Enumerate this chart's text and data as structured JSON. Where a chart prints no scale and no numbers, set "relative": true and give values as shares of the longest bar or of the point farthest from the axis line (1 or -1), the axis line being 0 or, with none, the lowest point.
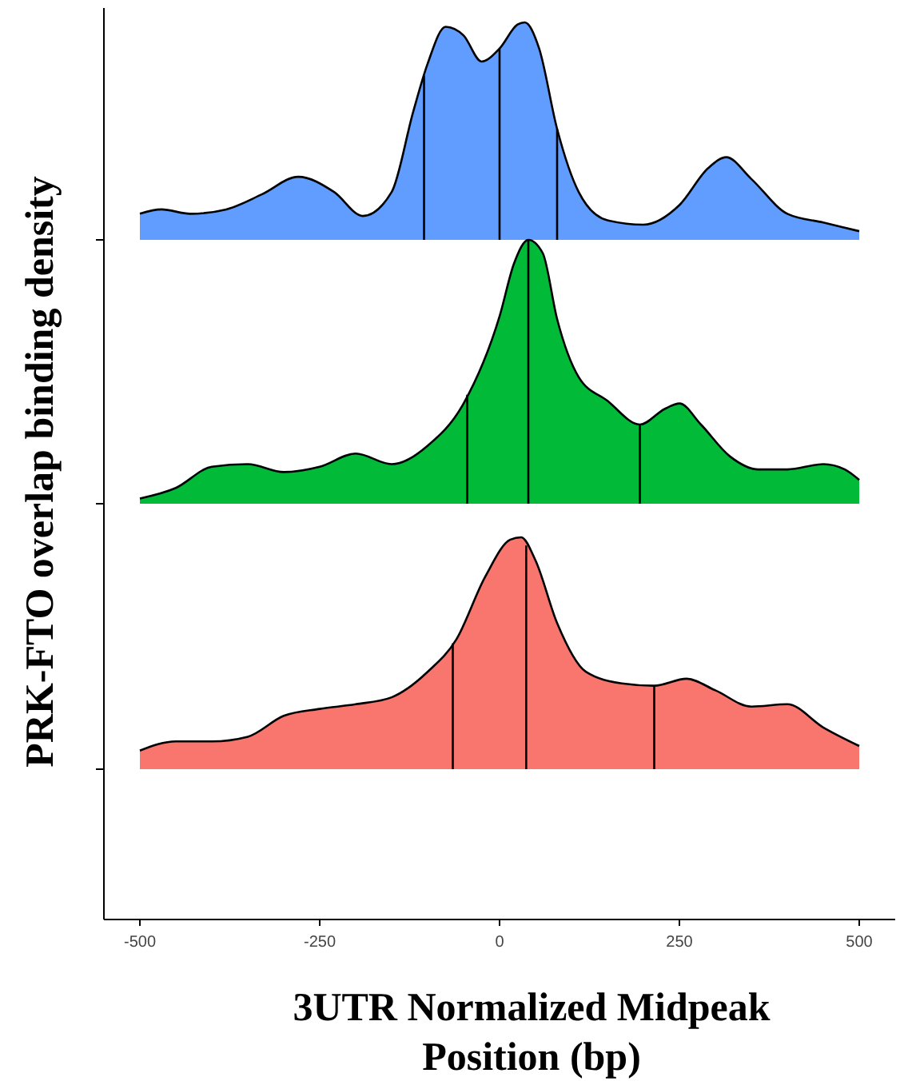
{
  "chart_data": [
    {
      "type": "area",
      "relative": true,
      "xlim": [
        -500,
        500
      ],
      "xticks": [
        -500,
        -250,
        0,
        250,
        500
      ],
      "tick_labels": false,
      "ylabel": "PRK-FTO overlap binding density",
      "series": [
        {
          "color": "#619cff",
          "x": [
            -500,
            -470,
            -430,
            -380,
            -330,
            -280,
            -230,
            -190,
            -150,
            -120,
            -100,
            -75,
            -50,
            -25,
            0,
            25,
            35,
            55,
            80,
            110,
            150,
            200,
            250,
            290,
            315,
            350,
            400,
            450,
            500
          ],
          "values": [
            0.12,
            0.14,
            0.12,
            0.14,
            0.21,
            0.29,
            0.22,
            0.11,
            0.22,
            0.59,
            0.81,
            0.98,
            0.94,
            0.82,
            0.88,
            0.99,
            1,
            0.88,
            0.51,
            0.22,
            0.09,
            0.07,
            0.16,
            0.33,
            0.38,
            0.28,
            0.12,
            0.08,
            0.04
          ]
        }
      ],
      "ref_lines": [
        {
          "axis": "x",
          "value": -105,
          "color": "#000000"
        },
        {
          "axis": "x",
          "value": 0,
          "color": "#000000"
        },
        {
          "axis": "x",
          "value": 80,
          "color": "#000000"
        }
      ]
    },
    {
      "type": "area",
      "relative": true,
      "xlim": [
        -500,
        500
      ],
      "xticks": [
        -500,
        -250,
        0,
        250,
        500
      ],
      "tick_labels": false,
      "series": [
        {
          "color": "#00ba38",
          "x": [
            -500,
            -450,
            -400,
            -350,
            -300,
            -250,
            -200,
            -150,
            -100,
            -50,
            0,
            20,
            40,
            60,
            80,
            110,
            150,
            195,
            230,
            250,
            280,
            320,
            360,
            400,
            450,
            480,
            500
          ],
          "values": [
            0.02,
            0.06,
            0.14,
            0.15,
            0.12,
            0.14,
            0.19,
            0.15,
            0.22,
            0.38,
            0.71,
            0.91,
            1,
            0.95,
            0.7,
            0.48,
            0.39,
            0.3,
            0.36,
            0.38,
            0.3,
            0.18,
            0.13,
            0.13,
            0.15,
            0.13,
            0.09
          ]
        }
      ],
      "ref_lines": [
        {
          "axis": "x",
          "value": -45,
          "color": "#000000"
        },
        {
          "axis": "x",
          "value": 40,
          "color": "#000000"
        },
        {
          "axis": "x",
          "value": 195,
          "color": "#000000"
        }
      ]
    },
    {
      "type": "area",
      "relative": true,
      "xlim": [
        -550,
        550
      ],
      "xticks": [
        -500,
        -250,
        0,
        250,
        500
      ],
      "tick_labels": "x",
      "xlabel": "3UTR Normalized Midpeak Position (bp)",
      "series": [
        {
          "color": "#f8766d",
          "x": [
            -500,
            -450,
            -400,
            -350,
            -300,
            -250,
            -200,
            -150,
            -100,
            -60,
            -20,
            15,
            30,
            50,
            80,
            120,
            170,
            215,
            260,
            300,
            350,
            400,
            450,
            500
          ],
          "values": [
            0.08,
            0.12,
            0.12,
            0.14,
            0.23,
            0.26,
            0.28,
            0.31,
            0.42,
            0.56,
            0.83,
            0.99,
            1,
            0.9,
            0.63,
            0.42,
            0.37,
            0.36,
            0.39,
            0.34,
            0.27,
            0.28,
            0.18,
            0.1
          ]
        }
      ],
      "ref_lines": [
        {
          "axis": "x",
          "value": -65,
          "color": "#000000"
        },
        {
          "axis": "x",
          "value": 37,
          "color": "#000000"
        },
        {
          "axis": "x",
          "value": 215,
          "color": "#000000"
        }
      ]
    }
  ]
}
